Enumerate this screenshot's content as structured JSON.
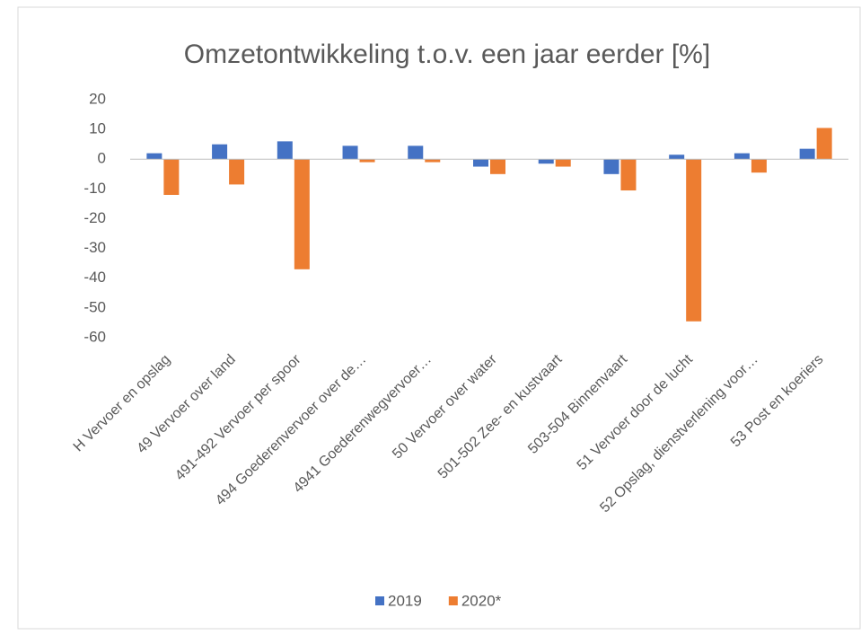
{
  "chart_data": {
    "type": "bar",
    "title": "Omzetontwikkeling t.o.v. een jaar eerder [%]",
    "categories": [
      "H Vervoer en opslag",
      "49 Vervoer over land",
      "491-492 Vervoer per spoor",
      "494 Goederenvervoer over de…",
      "4941 Goederenwegvervoer…",
      "50 Vervoer over water",
      "501-502 Zee- en kustvaart",
      "503-504 Binnenvaart",
      "51 Vervoer door de lucht",
      "52 Opslag, dienstverlening voor…",
      "53 Post en koeriers"
    ],
    "series": [
      {
        "name": "2019",
        "color": "#4472c4",
        "values": [
          2,
          5,
          6,
          4.5,
          4.5,
          -2.5,
          -1.5,
          -5,
          1.5,
          2,
          3.5
        ]
      },
      {
        "name": "2020*",
        "color": "#ed7d31",
        "values": [
          -12,
          -8.5,
          -37,
          -1,
          -1,
          -5,
          -2.5,
          -10.5,
          -54.5,
          -4.5,
          10.5
        ]
      }
    ],
    "ylim": [
      -60,
      20
    ],
    "yticks": [
      20,
      10,
      0,
      -10,
      -20,
      -30,
      -40,
      -50,
      -60
    ],
    "grid": false,
    "legend": "bottom"
  }
}
